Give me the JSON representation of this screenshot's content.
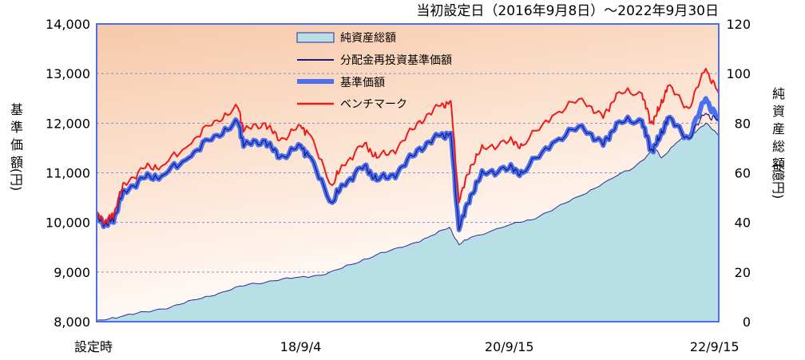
{
  "chart_data": {
    "type": "line",
    "title": "当初設定日（2016年9月8日）～2022年9月30日",
    "y_left_label_chars": [
      "基",
      "準",
      "価",
      "額",
      "(円)"
    ],
    "y_right_label_chars": [
      "純",
      "資",
      "産",
      "総",
      "額",
      "(億円)"
    ],
    "y_left_ticks": [
      "14,000",
      "13,000",
      "12,000",
      "11,000",
      "10,000",
      "9,000",
      "8,000"
    ],
    "y_right_ticks": [
      "120",
      "100",
      "80",
      "60",
      "40",
      "20",
      "0"
    ],
    "y_left_range": [
      8000,
      14000
    ],
    "y_right_range": [
      0,
      120
    ],
    "x_tick_labels": [
      "設定時",
      "18/9/4",
      "20/9/15",
      "22/9/15"
    ],
    "x_tick_dates": [
      "2016-09-08",
      "2018-09-04",
      "2020-09-15",
      "2022-09-15"
    ],
    "x_range": [
      "2016-09-08",
      "2022-09-30"
    ],
    "grid": true,
    "legend_position": "top-center",
    "colors": {
      "net_assets_fill": "#b9dfe6",
      "net_assets_line": "#2a2a9a",
      "dividend_reinvested": "#1a1a7a",
      "nav": "#4a6ff0",
      "benchmark": "#ee1b1b",
      "plot_bg_top": "#f6c8a8",
      "plot_bg_bottom": "#ffffff",
      "frame": "#4a6ff0",
      "grid": "#7f8fd8"
    },
    "series": [
      {
        "name": "純資産総額",
        "type": "area",
        "axis": "right",
        "x": [
          "2016-09-08",
          "2016-12-01",
          "2017-03-01",
          "2017-06-01",
          "2017-09-01",
          "2017-12-01",
          "2018-03-01",
          "2018-06-01",
          "2018-09-01",
          "2018-12-01",
          "2019-03-01",
          "2019-06-01",
          "2019-09-01",
          "2019-12-01",
          "2020-02-15",
          "2020-03-20",
          "2020-05-01",
          "2020-09-15",
          "2020-12-01",
          "2021-03-01",
          "2021-06-01",
          "2021-09-01",
          "2021-12-01",
          "2022-02-15",
          "2022-03-10",
          "2022-05-01",
          "2022-07-01",
          "2022-08-15",
          "2022-09-30"
        ],
        "values": [
          0.5,
          2,
          4,
          6,
          9,
          12,
          15,
          16.5,
          18,
          19,
          23,
          27,
          30,
          34,
          38,
          31,
          34,
          39,
          41,
          46,
          51,
          57,
          62,
          70,
          66,
          72,
          76,
          80,
          75
        ]
      },
      {
        "name": "分配金再投資基準価額",
        "type": "line",
        "axis": "left",
        "x": [
          "2016-09-08",
          "2016-10-15",
          "2016-11-10",
          "2016-12-15",
          "2017-03-01",
          "2017-05-01",
          "2017-08-01",
          "2017-11-01",
          "2018-01-25",
          "2018-02-15",
          "2018-05-01",
          "2018-06-20",
          "2018-09-04",
          "2018-10-01",
          "2018-12-25",
          "2019-02-01",
          "2019-04-20",
          "2019-06-01",
          "2019-08-15",
          "2019-11-01",
          "2020-01-15",
          "2020-02-20",
          "2020-03-20",
          "2020-04-30",
          "2020-06-15",
          "2020-09-15",
          "2020-11-01",
          "2021-02-15",
          "2021-06-01",
          "2021-08-15",
          "2021-10-01",
          "2021-12-31",
          "2022-01-31",
          "2022-02-28",
          "2022-04-01",
          "2022-06-15",
          "2022-08-15",
          "2022-09-30"
        ],
        "values": [
          10100,
          9950,
          10100,
          10650,
          10900,
          10950,
          11300,
          11750,
          12000,
          11550,
          11650,
          11300,
          11550,
          11350,
          10400,
          10750,
          11150,
          10850,
          11000,
          11500,
          11750,
          11800,
          9850,
          10550,
          11000,
          11100,
          11000,
          11600,
          11950,
          11550,
          12000,
          12050,
          11450,
          11650,
          12100,
          11700,
          12200,
          12050
        ]
      },
      {
        "name": "基準価額",
        "type": "line",
        "axis": "left",
        "x": [
          "2016-09-08",
          "2016-10-15",
          "2016-11-10",
          "2016-12-15",
          "2017-03-01",
          "2017-05-01",
          "2017-08-01",
          "2017-11-01",
          "2018-01-25",
          "2018-02-15",
          "2018-05-01",
          "2018-06-20",
          "2018-09-04",
          "2018-10-01",
          "2018-12-25",
          "2019-02-01",
          "2019-04-20",
          "2019-06-01",
          "2019-08-15",
          "2019-11-01",
          "2020-01-15",
          "2020-02-20",
          "2020-03-20",
          "2020-04-30",
          "2020-06-15",
          "2020-09-15",
          "2020-11-01",
          "2021-02-15",
          "2021-06-01",
          "2021-08-15",
          "2021-10-01",
          "2021-12-31",
          "2022-01-31",
          "2022-02-28",
          "2022-04-01",
          "2022-06-15",
          "2022-08-15",
          "2022-09-30"
        ],
        "values": [
          10100,
          9950,
          10100,
          10650,
          10900,
          10950,
          11300,
          11750,
          12000,
          11550,
          11650,
          11300,
          11550,
          11350,
          10400,
          10750,
          11150,
          10850,
          11000,
          11500,
          11750,
          11800,
          9850,
          10550,
          11000,
          11100,
          11000,
          11600,
          11950,
          11550,
          12000,
          12050,
          11450,
          11650,
          12100,
          11700,
          12500,
          12050
        ]
      },
      {
        "name": "ベンチマーク",
        "type": "line",
        "axis": "left",
        "x": [
          "2016-09-08",
          "2016-10-15",
          "2016-11-10",
          "2016-12-15",
          "2017-03-01",
          "2017-05-01",
          "2017-08-01",
          "2017-11-01",
          "2018-01-25",
          "2018-02-15",
          "2018-05-01",
          "2018-06-20",
          "2018-09-04",
          "2018-10-01",
          "2018-12-25",
          "2019-02-01",
          "2019-04-20",
          "2019-06-01",
          "2019-08-15",
          "2019-11-01",
          "2020-01-15",
          "2020-02-20",
          "2020-03-20",
          "2020-04-30",
          "2020-06-15",
          "2020-09-15",
          "2020-11-01",
          "2021-02-15",
          "2021-06-01",
          "2021-08-15",
          "2021-10-01",
          "2021-12-31",
          "2022-01-31",
          "2022-02-28",
          "2022-04-01",
          "2022-06-15",
          "2022-08-15",
          "2022-09-30"
        ],
        "values": [
          10150,
          10000,
          10200,
          10800,
          11100,
          11150,
          11550,
          12050,
          12300,
          11850,
          12000,
          11650,
          11950,
          11800,
          10750,
          11150,
          11600,
          11300,
          11500,
          12050,
          12350,
          12450,
          10400,
          11150,
          11500,
          11650,
          11550,
          12150,
          12500,
          12100,
          12600,
          12600,
          12000,
          12250,
          12750,
          12300,
          13100,
          12600
        ]
      }
    ]
  }
}
